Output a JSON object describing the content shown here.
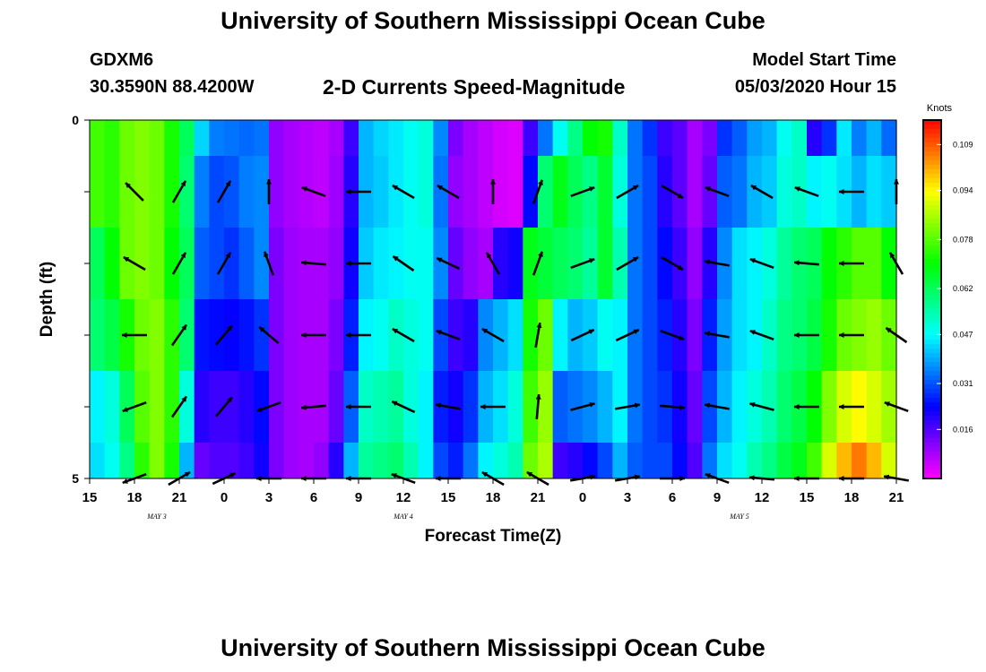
{
  "header": {
    "title": "University of Southern Mississippi Ocean Cube",
    "station_id": "GDXM6",
    "station_coords": "30.3590N 88.4200W",
    "subtitle": "2-D Currents Speed-Magnitude",
    "model_start_label": "Model Start Time",
    "model_start_time": "05/03/2020 Hour 15"
  },
  "footer": {
    "title": "University of Southern Mississippi Ocean Cube"
  },
  "chart_data": {
    "type": "heatmap",
    "title": "2-D Currents Speed-Magnitude",
    "xlabel": "Forecast Time(Z)",
    "ylabel": "Depth (ft)",
    "x_range_hours": [
      0,
      54
    ],
    "y_range_ft": [
      0,
      5
    ],
    "x_ticks": [
      {
        "h": 0,
        "label": "15"
      },
      {
        "h": 3,
        "label": "18"
      },
      {
        "h": 6,
        "label": "21"
      },
      {
        "h": 9,
        "label": "0"
      },
      {
        "h": 12,
        "label": "3"
      },
      {
        "h": 15,
        "label": "6"
      },
      {
        "h": 18,
        "label": "9"
      },
      {
        "h": 21,
        "label": "12"
      },
      {
        "h": 24,
        "label": "15"
      },
      {
        "h": 27,
        "label": "18"
      },
      {
        "h": 30,
        "label": "21"
      },
      {
        "h": 33,
        "label": "0"
      },
      {
        "h": 36,
        "label": "3"
      },
      {
        "h": 39,
        "label": "6"
      },
      {
        "h": 42,
        "label": "9"
      },
      {
        "h": 45,
        "label": "12"
      },
      {
        "h": 48,
        "label": "15"
      },
      {
        "h": 51,
        "label": "18"
      },
      {
        "h": 54,
        "label": "21"
      }
    ],
    "date_labels": [
      {
        "h": 4.5,
        "label": "MAY 3"
      },
      {
        "h": 21,
        "label": "MAY 4"
      },
      {
        "h": 43.5,
        "label": "MAY 5"
      }
    ],
    "y_ticks": [
      {
        "v": 0,
        "label": "0"
      },
      {
        "v": 1,
        "label": ""
      },
      {
        "v": 2,
        "label": ""
      },
      {
        "v": 3,
        "label": ""
      },
      {
        "v": 4,
        "label": ""
      },
      {
        "v": 5,
        "label": "5"
      }
    ],
    "colorbar": {
      "title": "Knots",
      "min": 0.0,
      "max": 0.117,
      "ticks": [
        0.109,
        0.094,
        0.078,
        0.062,
        0.047,
        0.031,
        0.016
      ]
    },
    "depth_layers": [
      0,
      0.5,
      1.5,
      2.5,
      3.5,
      4.5,
      5
    ],
    "hours": [
      0,
      1,
      2,
      3,
      4,
      5,
      6,
      7,
      8,
      9,
      10,
      11,
      12,
      13,
      14,
      15,
      16,
      17,
      18,
      19,
      20,
      21,
      22,
      23,
      24,
      25,
      26,
      27,
      28,
      29,
      30,
      31,
      32,
      33,
      34,
      35,
      36,
      37,
      38,
      39,
      40,
      41,
      42,
      43,
      44,
      45,
      46,
      47,
      48,
      49,
      50,
      51,
      52,
      53
    ],
    "speed_by_layer": [
      [
        0.076,
        0.074,
        0.08,
        0.082,
        0.08,
        0.072,
        0.062,
        0.043,
        0.035,
        0.034,
        0.033,
        0.034,
        0.01,
        0.008,
        0.007,
        0.006,
        0.008,
        0.018,
        0.04,
        0.043,
        0.045,
        0.048,
        0.05,
        0.036,
        0.012,
        0.008,
        0.006,
        0.004,
        0.003,
        0.018,
        0.034,
        0.048,
        0.058,
        0.07,
        0.072,
        0.052,
        0.034,
        0.028,
        0.018,
        0.015,
        0.008,
        0.012,
        0.028,
        0.032,
        0.038,
        0.04,
        0.048,
        0.052,
        0.02,
        0.028,
        0.045,
        0.035,
        0.04,
        0.033
      ],
      [
        0.076,
        0.074,
        0.08,
        0.082,
        0.08,
        0.072,
        0.06,
        0.035,
        0.03,
        0.031,
        0.035,
        0.036,
        0.01,
        0.008,
        0.007,
        0.006,
        0.009,
        0.02,
        0.04,
        0.042,
        0.045,
        0.048,
        0.05,
        0.034,
        0.01,
        0.008,
        0.006,
        0.004,
        0.003,
        0.024,
        0.06,
        0.068,
        0.062,
        0.058,
        0.066,
        0.05,
        0.034,
        0.03,
        0.02,
        0.015,
        0.008,
        0.014,
        0.032,
        0.034,
        0.04,
        0.042,
        0.05,
        0.052,
        0.046,
        0.048,
        0.044,
        0.04,
        0.044,
        0.042
      ],
      [
        0.062,
        0.07,
        0.08,
        0.082,
        0.08,
        0.07,
        0.062,
        0.032,
        0.03,
        0.028,
        0.032,
        0.036,
        0.012,
        0.009,
        0.008,
        0.008,
        0.01,
        0.022,
        0.042,
        0.045,
        0.046,
        0.048,
        0.048,
        0.036,
        0.014,
        0.01,
        0.008,
        0.02,
        0.022,
        0.068,
        0.065,
        0.062,
        0.06,
        0.056,
        0.066,
        0.054,
        0.034,
        0.03,
        0.024,
        0.018,
        0.01,
        0.02,
        0.036,
        0.044,
        0.046,
        0.05,
        0.056,
        0.06,
        0.062,
        0.07,
        0.074,
        0.078,
        0.078,
        0.07
      ],
      [
        0.06,
        0.064,
        0.072,
        0.08,
        0.082,
        0.074,
        0.06,
        0.025,
        0.024,
        0.023,
        0.025,
        0.028,
        0.012,
        0.009,
        0.008,
        0.008,
        0.012,
        0.026,
        0.046,
        0.048,
        0.052,
        0.05,
        0.048,
        0.03,
        0.018,
        0.02,
        0.036,
        0.04,
        0.044,
        0.072,
        0.08,
        0.046,
        0.04,
        0.042,
        0.048,
        0.046,
        0.034,
        0.03,
        0.026,
        0.02,
        0.012,
        0.026,
        0.038,
        0.044,
        0.046,
        0.052,
        0.058,
        0.06,
        0.064,
        0.072,
        0.08,
        0.082,
        0.084,
        0.08
      ],
      [
        0.046,
        0.05,
        0.062,
        0.078,
        0.082,
        0.074,
        0.05,
        0.02,
        0.018,
        0.018,
        0.02,
        0.024,
        0.012,
        0.009,
        0.008,
        0.008,
        0.014,
        0.032,
        0.052,
        0.054,
        0.056,
        0.05,
        0.046,
        0.026,
        0.022,
        0.028,
        0.04,
        0.044,
        0.05,
        0.076,
        0.084,
        0.032,
        0.034,
        0.036,
        0.04,
        0.046,
        0.034,
        0.03,
        0.028,
        0.022,
        0.014,
        0.03,
        0.04,
        0.046,
        0.05,
        0.054,
        0.06,
        0.064,
        0.07,
        0.082,
        0.09,
        0.094,
        0.09,
        0.085
      ],
      [
        0.044,
        0.048,
        0.058,
        0.074,
        0.082,
        0.072,
        0.04,
        0.014,
        0.016,
        0.016,
        0.018,
        0.022,
        0.012,
        0.009,
        0.008,
        0.01,
        0.02,
        0.04,
        0.056,
        0.058,
        0.06,
        0.054,
        0.046,
        0.03,
        0.026,
        0.034,
        0.046,
        0.05,
        0.054,
        0.08,
        0.086,
        0.018,
        0.02,
        0.024,
        0.03,
        0.04,
        0.032,
        0.03,
        0.03,
        0.024,
        0.016,
        0.034,
        0.044,
        0.048,
        0.054,
        0.058,
        0.064,
        0.068,
        0.076,
        0.09,
        0.1,
        0.106,
        0.1,
        0.09
      ]
    ],
    "arrow_depths_ft": [
      1,
      2,
      3,
      4,
      5
    ],
    "arrow_hours": [
      3,
      6,
      9,
      12,
      15,
      18,
      21,
      24,
      27,
      30,
      33,
      36,
      39,
      42,
      45,
      48,
      51,
      54
    ],
    "arrow_direction_deg": [
      [
        315,
        30,
        30,
        0,
        290,
        270,
        300,
        300,
        0,
        20,
        70,
        60,
        120,
        290,
        300,
        290,
        270,
        0
      ],
      [
        300,
        30,
        30,
        340,
        275,
        270,
        305,
        295,
        330,
        20,
        70,
        60,
        120,
        280,
        290,
        275,
        270,
        330
      ],
      [
        270,
        35,
        40,
        310,
        270,
        270,
        300,
        290,
        300,
        10,
        65,
        65,
        110,
        280,
        290,
        270,
        270,
        305
      ],
      [
        250,
        35,
        40,
        250,
        265,
        270,
        295,
        280,
        270,
        5,
        75,
        80,
        95,
        280,
        285,
        270,
        270,
        290
      ],
      [
        250,
        60,
        65,
        270,
        270,
        270,
        290,
        270,
        300,
        300,
        80,
        80,
        90,
        290,
        275,
        270,
        270,
        280
      ]
    ]
  }
}
